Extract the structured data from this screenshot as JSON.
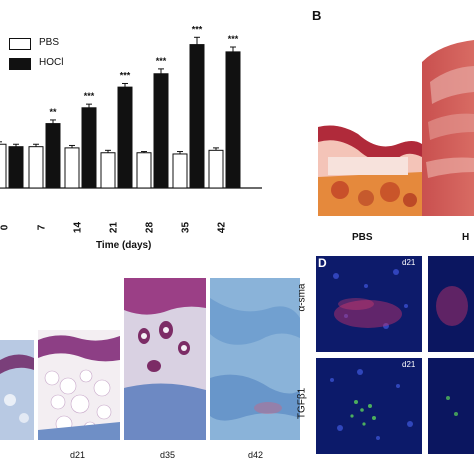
{
  "chart_data": {
    "type": "bar",
    "xlabel": "Time (days)",
    "categories": [
      "0",
      "7",
      "14",
      "21",
      "28",
      "35",
      "42"
    ],
    "ylim": [
      0,
      130
    ],
    "series": [
      {
        "name": "PBS",
        "color": "#ffffff",
        "values": [
          36,
          34,
          33,
          29,
          29,
          28,
          31
        ]
      },
      {
        "name": "HOCl",
        "color": "#111111",
        "values": [
          34,
          53,
          66,
          83,
          94,
          118,
          112
        ]
      }
    ],
    "errors": {
      "PBS": [
        2,
        2,
        2,
        2,
        1,
        2,
        2
      ],
      "HOCl": [
        2,
        3,
        3,
        3,
        4,
        6,
        4
      ]
    },
    "significance": [
      "",
      "**",
      "***",
      "***",
      "***",
      "***",
      "***"
    ]
  },
  "panel_b": {
    "letter": "B",
    "labels": [
      "PBS",
      "H"
    ]
  },
  "panel_c": {
    "days": [
      "d21",
      "d35",
      "d42"
    ]
  },
  "panel_d": {
    "letter": "D",
    "rows": [
      "α-sma",
      "TGFβ1"
    ],
    "day_tags": [
      "d21",
      "d21"
    ]
  }
}
